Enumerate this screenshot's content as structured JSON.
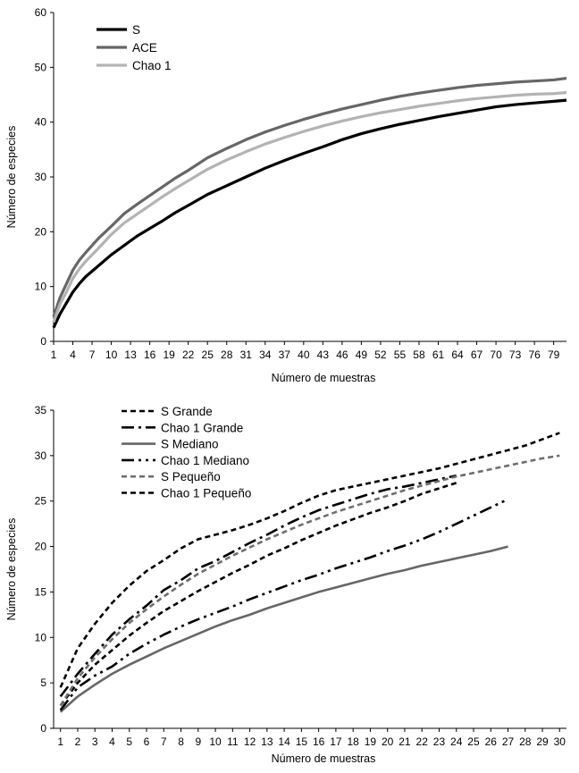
{
  "chart_data": [
    {
      "type": "line",
      "xlabel": "Número de muestras",
      "ylabel": "Número de especies",
      "xlim": [
        1,
        81
      ],
      "ylim": [
        0,
        60
      ],
      "yticks": [
        0,
        10,
        20,
        30,
        40,
        50,
        60
      ],
      "xticks": [
        1,
        4,
        7,
        10,
        13,
        16,
        19,
        22,
        25,
        28,
        31,
        34,
        37,
        40,
        43,
        46,
        49,
        52,
        55,
        58,
        61,
        64,
        67,
        70,
        73,
        76,
        79
      ],
      "legend_position": "top-left",
      "series": [
        {
          "name": "S",
          "color": "#000000",
          "dash": "solid",
          "x": [
            1,
            2,
            3,
            4,
            5,
            6,
            7,
            8,
            10,
            12,
            14,
            16,
            18,
            20,
            22,
            25,
            28,
            31,
            34,
            37,
            40,
            43,
            46,
            49,
            52,
            55,
            58,
            61,
            64,
            67,
            70,
            73,
            76,
            79,
            81
          ],
          "y": [
            2.5,
            5,
            7,
            9,
            10.5,
            11.8,
            12.8,
            13.8,
            15.8,
            17.5,
            19.2,
            20.6,
            22,
            23.5,
            24.8,
            26.8,
            28.4,
            30,
            31.6,
            33,
            34.3,
            35.5,
            36.8,
            37.9,
            38.8,
            39.6,
            40.3,
            41,
            41.6,
            42.2,
            42.8,
            43.2,
            43.5,
            43.8,
            44
          ]
        },
        {
          "name": "ACE",
          "color": "#666666",
          "dash": "solid",
          "x": [
            1,
            2,
            3,
            4,
            5,
            6,
            7,
            8,
            10,
            12,
            14,
            16,
            18,
            20,
            22,
            25,
            28,
            31,
            34,
            37,
            40,
            43,
            46,
            49,
            52,
            55,
            58,
            61,
            64,
            67,
            70,
            73,
            76,
            79,
            81
          ],
          "y": [
            4.5,
            8,
            10.5,
            13,
            14.8,
            16.2,
            17.5,
            18.8,
            21,
            23.3,
            25,
            26.6,
            28.2,
            29.8,
            31.2,
            33.5,
            35.2,
            36.8,
            38.2,
            39.4,
            40.5,
            41.5,
            42.4,
            43.2,
            44,
            44.7,
            45.3,
            45.8,
            46.3,
            46.7,
            47,
            47.3,
            47.5,
            47.7,
            48
          ]
        },
        {
          "name": "Chao 1",
          "color": "#b3b3b3",
          "dash": "solid",
          "x": [
            1,
            2,
            3,
            4,
            5,
            6,
            7,
            8,
            10,
            12,
            14,
            16,
            18,
            20,
            22,
            25,
            28,
            31,
            34,
            37,
            40,
            43,
            46,
            49,
            52,
            55,
            58,
            61,
            64,
            67,
            70,
            73,
            76,
            79,
            81
          ],
          "y": [
            3.5,
            6.8,
            9,
            11.5,
            13.2,
            14.6,
            15.8,
            17,
            19.5,
            21.6,
            23.2,
            24.8,
            26.4,
            27.9,
            29.3,
            31.4,
            33.1,
            34.6,
            36,
            37.2,
            38.3,
            39.3,
            40.2,
            41,
            41.7,
            42.3,
            42.9,
            43.4,
            43.9,
            44.3,
            44.6,
            44.9,
            45.1,
            45.2,
            45.4
          ]
        }
      ]
    },
    {
      "type": "line",
      "xlabel": "Número de muestras",
      "ylabel": "Número de especies",
      "xlim": [
        1,
        30
      ],
      "ylim": [
        0,
        35
      ],
      "yticks": [
        0,
        5,
        10,
        15,
        20,
        25,
        30,
        35
      ],
      "xticks": [
        1,
        2,
        3,
        4,
        5,
        6,
        7,
        8,
        9,
        10,
        11,
        12,
        13,
        14,
        15,
        16,
        17,
        18,
        19,
        20,
        21,
        22,
        23,
        24,
        25,
        26,
        27,
        28,
        29,
        30
      ],
      "legend_position": "top-left",
      "series": [
        {
          "name": "S Grande",
          "color": "#000000",
          "dash": "short-dash",
          "x": [
            1,
            2,
            3,
            4,
            5,
            6,
            7,
            8,
            9,
            10,
            11,
            12,
            13,
            14,
            15,
            16,
            17,
            18,
            19,
            20,
            21,
            22,
            23,
            24
          ],
          "y": [
            2.5,
            5,
            7,
            8.6,
            10.2,
            11.6,
            12.9,
            14,
            15.1,
            16.1,
            17.1,
            18,
            19,
            19.8,
            20.7,
            21.5,
            22.3,
            23,
            23.7,
            24.3,
            25,
            25.8,
            26.4,
            27
          ]
        },
        {
          "name": "Chao 1 Grande",
          "color": "#000000",
          "dash": "dash-dot",
          "x": [
            1,
            2,
            3,
            4,
            5,
            6,
            7,
            8,
            9,
            10,
            11,
            12,
            13,
            14,
            15,
            16,
            17,
            18,
            19,
            20,
            21,
            22,
            23,
            24
          ],
          "y": [
            3.5,
            6,
            8.2,
            10.3,
            12,
            13.5,
            15.2,
            16.3,
            17.6,
            18.4,
            19.4,
            20.4,
            21.3,
            22.3,
            23.2,
            24,
            24.6,
            25.2,
            25.8,
            26.3,
            26.6,
            27,
            27.4,
            27.8
          ]
        },
        {
          "name": "S Mediano",
          "color": "#666666",
          "dash": "solid",
          "x": [
            1,
            2,
            3,
            4,
            5,
            6,
            7,
            8,
            9,
            10,
            11,
            12,
            13,
            14,
            15,
            16,
            17,
            18,
            19,
            20,
            21,
            22,
            23,
            24,
            25,
            26,
            27
          ],
          "y": [
            1.8,
            3.5,
            4.8,
            6,
            7,
            7.9,
            8.8,
            9.6,
            10.4,
            11.2,
            11.9,
            12.5,
            13.2,
            13.8,
            14.4,
            15,
            15.5,
            16,
            16.5,
            17,
            17.4,
            17.9,
            18.3,
            18.7,
            19.1,
            19.5,
            20
          ]
        },
        {
          "name": "Chao 1 Mediano",
          "color": "#000000",
          "dash": "long-dash-dot-dot",
          "x": [
            1,
            2,
            3,
            4,
            5,
            6,
            7,
            8,
            9,
            10,
            11,
            12,
            13,
            14,
            15,
            16,
            17,
            18,
            19,
            20,
            21,
            22,
            23,
            24,
            25,
            26,
            27
          ],
          "y": [
            2,
            4.5,
            5.8,
            6.8,
            8.2,
            9.3,
            10.3,
            11.2,
            12,
            12.7,
            13.4,
            14.2,
            14.9,
            15.6,
            16.3,
            16.9,
            17.6,
            18.2,
            18.8,
            19.5,
            20.1,
            20.8,
            21.6,
            22.5,
            23.4,
            24.3,
            25.2
          ]
        },
        {
          "name": "S Pequeño",
          "color": "#6e6e6e",
          "dash": "short-dash",
          "x": [
            1,
            2,
            3,
            4,
            5,
            6,
            7,
            8,
            9,
            10,
            11,
            12,
            13,
            14,
            15,
            16,
            17,
            18,
            19,
            20,
            21,
            22,
            23,
            24,
            25,
            26,
            27,
            28,
            29,
            30
          ],
          "y": [
            2.5,
            5.5,
            7.8,
            9.8,
            11.6,
            13.1,
            14.5,
            15.8,
            17,
            18,
            19,
            19.9,
            20.8,
            21.6,
            22.4,
            23.1,
            23.8,
            24.4,
            25,
            25.6,
            26.2,
            26.7,
            27.2,
            27.7,
            28.1,
            28.5,
            28.9,
            29.3,
            29.7,
            30
          ]
        },
        {
          "name": "Chao 1 Pequeño",
          "color": "#000000",
          "dash": "short-dash",
          "x": [
            1,
            2,
            3,
            4,
            5,
            6,
            7,
            8,
            9,
            10,
            11,
            12,
            13,
            14,
            15,
            16,
            17,
            18,
            19,
            20,
            21,
            22,
            23,
            24,
            25,
            26,
            27,
            28,
            29,
            30
          ],
          "y": [
            4.5,
            8.8,
            11.5,
            13.8,
            15.7,
            17.3,
            18.5,
            19.8,
            20.8,
            21.3,
            21.8,
            22.4,
            23.1,
            23.9,
            24.8,
            25.6,
            26.2,
            26.6,
            27,
            27.4,
            27.8,
            28.2,
            28.6,
            29.1,
            29.6,
            30.1,
            30.6,
            31.1,
            31.8,
            32.5
          ]
        }
      ]
    }
  ]
}
